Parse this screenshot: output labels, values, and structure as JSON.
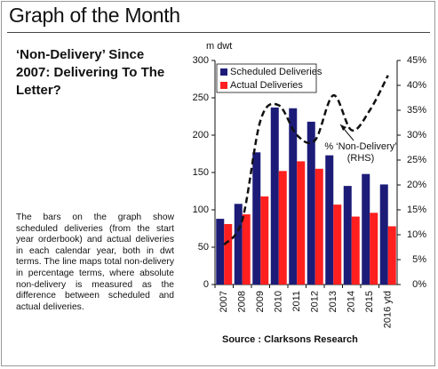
{
  "title": "Graph of the Month",
  "heading": "‘Non-Delivery’ Since 2007: Delivering To The Letter?",
  "body": "The bars on the graph show scheduled deliveries (from the start year orderbook) and actual deliveries in each calendar year, both in dwt terms. The line maps total non-delivery in percentage terms, where absolute non-delivery is measured as the difference between scheduled and actual deliveries.",
  "source": "Source : Clarksons Research",
  "chart_data": {
    "type": "bar",
    "y_label": "m dwt",
    "categories": [
      "2007",
      "2008",
      "2009",
      "2010",
      "2011",
      "2012",
      "2013",
      "2014",
      "2015",
      "2016 ytd"
    ],
    "series": [
      {
        "name": "Scheduled Deliveries",
        "color": "#1c1c78",
        "values": [
          88,
          108,
          177,
          237,
          236,
          218,
          173,
          132,
          148,
          134
        ]
      },
      {
        "name": "Actual Deliveries",
        "color": "#ff1f1f",
        "values": [
          81,
          94,
          118,
          152,
          165,
          155,
          107,
          91,
          96,
          78
        ]
      },
      {
        "type": "line",
        "axis": "y2",
        "color": "#111111",
        "dashed": true,
        "values": [
          8,
          13,
          33,
          36,
          30,
          29,
          38,
          31,
          35,
          42
        ]
      }
    ],
    "annotations": [
      "% ‘Non-Delivery’",
      "(RHS)"
    ],
    "ylim": [
      0,
      300
    ],
    "yticks": [
      0,
      50,
      100,
      150,
      200,
      250,
      300
    ],
    "y2lim": [
      0,
      45
    ],
    "y2ticks": [
      {
        "value": 0,
        "label": "0%"
      },
      {
        "value": 5,
        "label": "5%"
      },
      {
        "value": 10,
        "label": "10%"
      },
      {
        "value": 15,
        "label": "15%"
      },
      {
        "value": 20,
        "label": "20%"
      },
      {
        "value": 25,
        "label": "25%"
      },
      {
        "value": 30,
        "label": "30%"
      },
      {
        "value": 35,
        "label": "35%"
      },
      {
        "value": 40,
        "label": "40%"
      },
      {
        "value": 45,
        "label": "45%"
      }
    ],
    "legend": "top-left",
    "grid": false
  }
}
